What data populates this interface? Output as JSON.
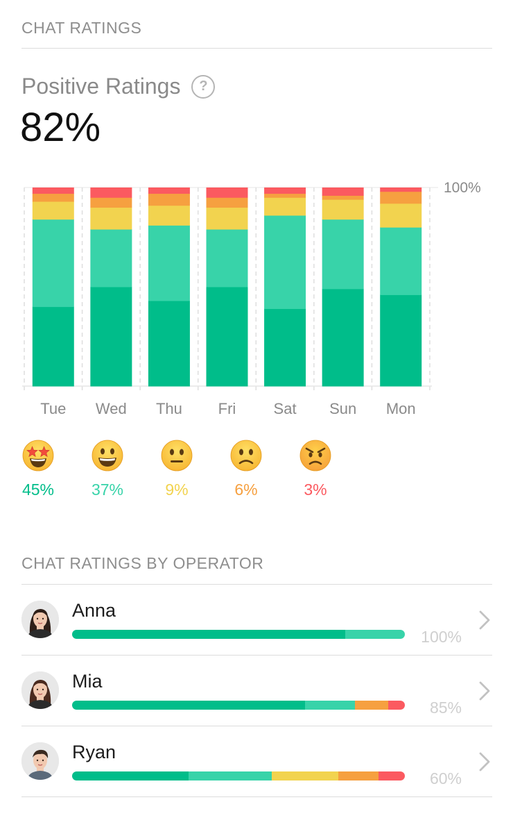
{
  "header": {
    "title": "CHAT RATINGS"
  },
  "summary": {
    "label": "Positive Ratings",
    "help_icon": "question-circle-icon",
    "value": "82%"
  },
  "colors": {
    "amazing": "#00bd8a",
    "good": "#38d3a9",
    "neutral": "#f2d34f",
    "bad": "#f6a040",
    "awful": "#fb5a60"
  },
  "chart_data": {
    "type": "bar",
    "stacked": true,
    "categories": [
      "Tue",
      "Wed",
      "Thu",
      "Fri",
      "Sat",
      "Sun",
      "Mon"
    ],
    "series": [
      {
        "key": "amazing",
        "values": [
          40,
          50,
          43,
          50,
          39,
          49,
          46
        ]
      },
      {
        "key": "good",
        "values": [
          44,
          29,
          38,
          29,
          47,
          35,
          34
        ]
      },
      {
        "key": "neutral",
        "values": [
          9,
          11,
          10,
          11,
          9,
          10,
          12
        ]
      },
      {
        "key": "bad",
        "values": [
          4,
          5,
          6,
          5,
          2,
          2,
          6
        ]
      },
      {
        "key": "awful",
        "values": [
          3,
          5,
          3,
          5,
          3,
          4,
          2
        ]
      }
    ],
    "ylim": [
      0,
      100
    ],
    "y_tick_label": "100%",
    "grid": true
  },
  "breakdown": [
    {
      "icon": "star-struck-face-icon",
      "color_key": "amazing",
      "pct": "45%"
    },
    {
      "icon": "grinning-face-icon",
      "color_key": "good",
      "pct": "37%"
    },
    {
      "icon": "neutral-face-icon",
      "color_key": "neutral",
      "pct": "9%"
    },
    {
      "icon": "slightly-frowning-face-icon",
      "color_key": "bad",
      "pct": "6%"
    },
    {
      "icon": "angry-face-icon",
      "color_key": "awful",
      "pct": "3%"
    }
  ],
  "operators_section": {
    "title": "CHAT RATINGS BY OPERATOR"
  },
  "operators": [
    {
      "name": "Anna",
      "pct": "100%",
      "avatar": "avatar-anna",
      "segments": [
        82,
        18,
        0,
        0,
        0
      ]
    },
    {
      "name": "Mia",
      "pct": "85%",
      "avatar": "avatar-mia",
      "segments": [
        70,
        15,
        0,
        10,
        5
      ]
    },
    {
      "name": "Ryan",
      "pct": "60%",
      "avatar": "avatar-ryan",
      "segments": [
        35,
        25,
        20,
        12,
        8
      ]
    }
  ]
}
